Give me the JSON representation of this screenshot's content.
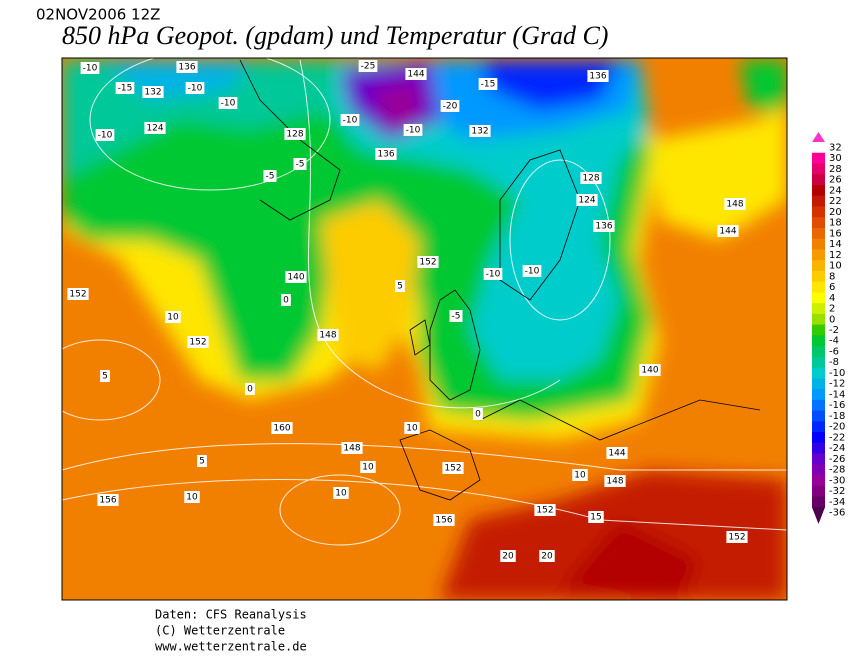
{
  "header": {
    "run": "02NOV2006 12Z",
    "title": "850 hPa Geopot. (gpdam) und  Temperatur (Grad C)"
  },
  "legend": {
    "levels": [
      32,
      30,
      28,
      26,
      24,
      22,
      20,
      18,
      16,
      14,
      12,
      10,
      8,
      6,
      4,
      2,
      0,
      -2,
      -4,
      -6,
      -8,
      -10,
      -12,
      -14,
      -16,
      -18,
      -20,
      -22,
      -24,
      -26,
      -28,
      -30,
      -32,
      -34,
      -36
    ],
    "colors": [
      "#ff33cc",
      "#ff0099",
      "#e6006b",
      "#cc0040",
      "#b30000",
      "#c41a00",
      "#d43300",
      "#e04d00",
      "#ea6600",
      "#f28000",
      "#f79900",
      "#fbb300",
      "#fdcc00",
      "#ffe600",
      "#ffff00",
      "#ccf000",
      "#99e000",
      "#33cc00",
      "#00c830",
      "#00c866",
      "#00c899",
      "#00cccc",
      "#00b3e6",
      "#0099ff",
      "#0073ff",
      "#004dff",
      "#0026ff",
      "#0000ff",
      "#3300e6",
      "#6600cc",
      "#8000b3",
      "#99009a",
      "#800080",
      "#660066",
      "#4d004d"
    ]
  },
  "map": {
    "contour_labels": [
      "-10",
      "136",
      "-15",
      "132",
      "-10",
      "-10",
      "124",
      "-10",
      "128",
      "-5",
      "-25",
      "144",
      "-20",
      "-15",
      "136",
      "-10",
      "132",
      "-5",
      "136",
      "-10",
      "128",
      "124",
      "144",
      "148",
      "-10",
      "-10",
      "140",
      "-5",
      "0",
      "152",
      "5",
      "10",
      "140",
      "148",
      "0",
      "152",
      "5",
      "160",
      "152",
      "10",
      "156",
      "10",
      "148",
      "10",
      "152",
      "156",
      "20",
      "152",
      "144",
      "10",
      "136",
      "148",
      "15",
      "152",
      "20",
      "10",
      "5",
      "0"
    ]
  },
  "footer": {
    "lines": [
      "Daten: CFS Reanalysis",
      "(C) Wetterzentrale",
      "www.wetterzentrale.de"
    ]
  }
}
